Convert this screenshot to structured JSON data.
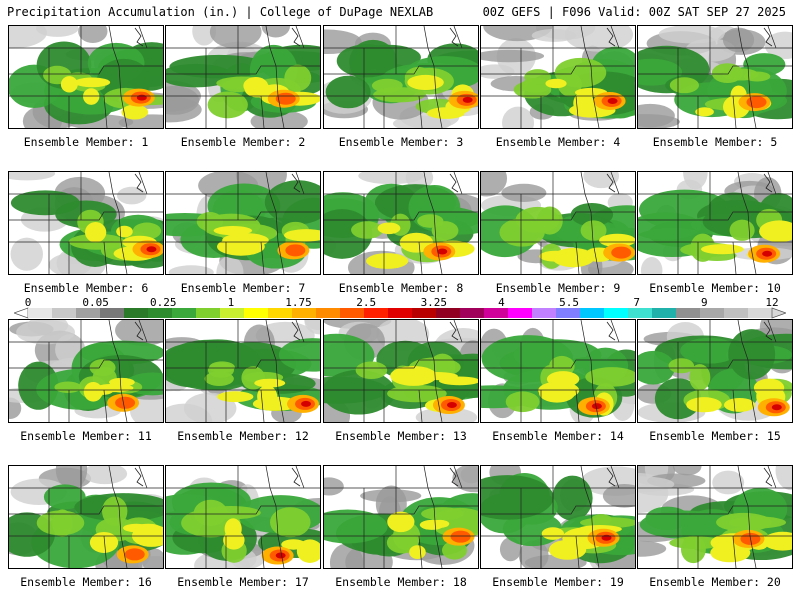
{
  "header": {
    "left_title": "Precipitation Accumulation (in.) | College of DuPage NEXLAB",
    "right_title": "00Z GEFS | F096 Valid: 00Z SAT SEP 27 2025"
  },
  "colorbar": {
    "labels": [
      "0",
      "0.05",
      "0.25",
      "1",
      "1.75",
      "2.5",
      "3.25",
      "4",
      "5.5",
      "7",
      "9",
      "12"
    ],
    "colors": [
      "#e6e6e6",
      "#c8c8c8",
      "#a0a0a0",
      "#787878",
      "#2a7a2a",
      "#2e8b2e",
      "#3aa83a",
      "#7fcf2f",
      "#c8f030",
      "#ffff00",
      "#ffd700",
      "#ffb000",
      "#ff8c00",
      "#ff5a00",
      "#ff2000",
      "#e00000",
      "#b80000",
      "#900020",
      "#a0005a",
      "#d0009a",
      "#ff00ff",
      "#c080ff",
      "#8080ff",
      "#00c8ff",
      "#00ffff",
      "#40e0d0",
      "#20b2aa",
      "#909090",
      "#a8a8a8",
      "#c0c0c0",
      "#d8d8d8"
    ]
  },
  "members": [
    {
      "label": "Ensemble Member: 1"
    },
    {
      "label": "Ensemble Member: 2"
    },
    {
      "label": "Ensemble Member: 3"
    },
    {
      "label": "Ensemble Member: 4"
    },
    {
      "label": "Ensemble Member: 5"
    },
    {
      "label": "Ensemble Member: 6"
    },
    {
      "label": "Ensemble Member: 7"
    },
    {
      "label": "Ensemble Member: 8"
    },
    {
      "label": "Ensemble Member: 9"
    },
    {
      "label": "Ensemble Member: 10"
    },
    {
      "label": "Ensemble Member: 11"
    },
    {
      "label": "Ensemble Member: 12"
    },
    {
      "label": "Ensemble Member: 13"
    },
    {
      "label": "Ensemble Member: 14"
    },
    {
      "label": "Ensemble Member: 15"
    },
    {
      "label": "Ensemble Member: 16"
    },
    {
      "label": "Ensemble Member: 17"
    },
    {
      "label": "Ensemble Member: 18"
    },
    {
      "label": "Ensemble Member: 19"
    },
    {
      "label": "Ensemble Member: 20"
    }
  ]
}
